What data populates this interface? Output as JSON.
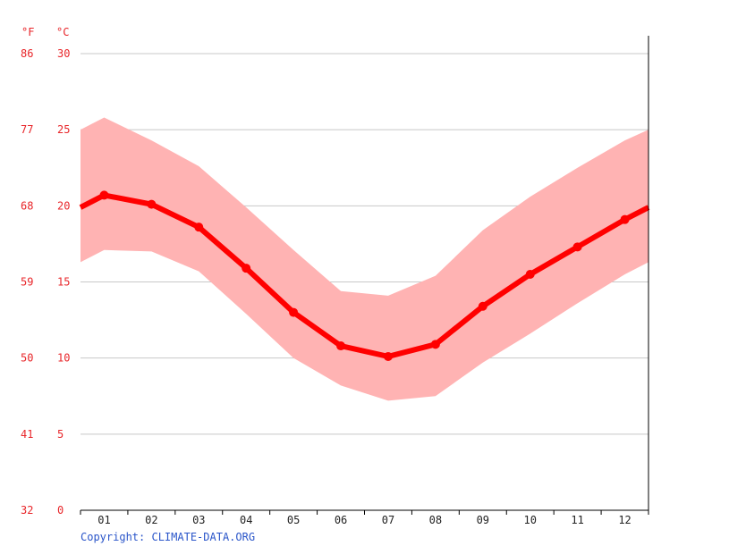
{
  "chart_data": {
    "type": "line",
    "y_unit_left": "°F",
    "y_unit_right": "°C",
    "celsius_ticks": [
      "30",
      "25",
      "20",
      "15",
      "10",
      "5",
      "0"
    ],
    "fahrenheit_ticks": [
      "86",
      "77",
      "68",
      "59",
      "50",
      "41",
      "32"
    ],
    "categories": [
      "01",
      "02",
      "03",
      "04",
      "05",
      "06",
      "07",
      "08",
      "09",
      "10",
      "11",
      "12"
    ],
    "ylim": [
      0,
      30
    ],
    "series": [
      {
        "values": [
          20.7,
          20.1,
          18.6,
          15.9,
          13.0,
          10.8,
          10.1,
          10.9,
          13.4,
          15.5,
          17.3,
          19.1
        ]
      }
    ],
    "band_upper": [
      25.8,
      24.3,
      22.6,
      19.9,
      17.1,
      14.4,
      14.1,
      15.4,
      18.4,
      20.6,
      22.5,
      24.3
    ],
    "band_lower": [
      17.1,
      17.0,
      15.7,
      12.9,
      10.0,
      8.2,
      7.2,
      7.5,
      9.7,
      11.6,
      13.6,
      15.5
    ],
    "band_edge_left": {
      "upper": 25.0,
      "lower": 16.3,
      "mean": 19.9
    },
    "band_edge_right": {
      "upper": 25.0,
      "lower": 16.3,
      "mean": 19.9
    },
    "grid": true,
    "colors": {
      "line": "#ff0000",
      "band": "#ffb3b3",
      "tick_text": "#e8262a",
      "grid": "#c8c8c8"
    }
  },
  "footer": {
    "copyright": "Copyright: CLIMATE-DATA.ORG"
  }
}
